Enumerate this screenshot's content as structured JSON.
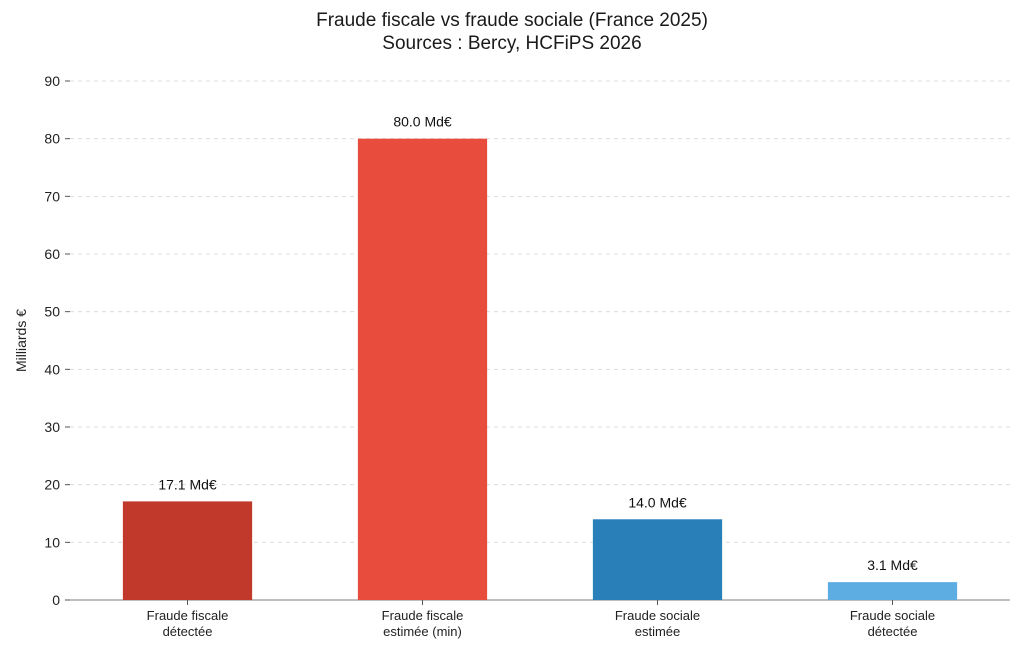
{
  "chart_data": {
    "type": "bar",
    "title": "Fraude fiscale vs fraude sociale (France 2025)",
    "subtitle": "Sources : Bercy, HCFiPS 2026",
    "xlabel": "",
    "ylabel": "Milliards €",
    "ylim": [
      0,
      90
    ],
    "yticks": [
      0,
      10,
      20,
      30,
      40,
      50,
      60,
      70,
      80,
      90
    ],
    "grid": true,
    "categories": [
      [
        "Fraude fiscale",
        "détectée"
      ],
      [
        "Fraude fiscale",
        "estimée (min)"
      ],
      [
        "Fraude sociale",
        "estimée"
      ],
      [
        "Fraude sociale",
        "détectée"
      ]
    ],
    "values": [
      17.1,
      80.0,
      14.0,
      3.1
    ],
    "data_labels": [
      "17.1 Md€",
      "80.0 Md€",
      "14.0 Md€",
      "3.1 Md€"
    ],
    "colors": [
      "#c0392b",
      "#e74c3c",
      "#2980b9",
      "#5dade2"
    ]
  }
}
